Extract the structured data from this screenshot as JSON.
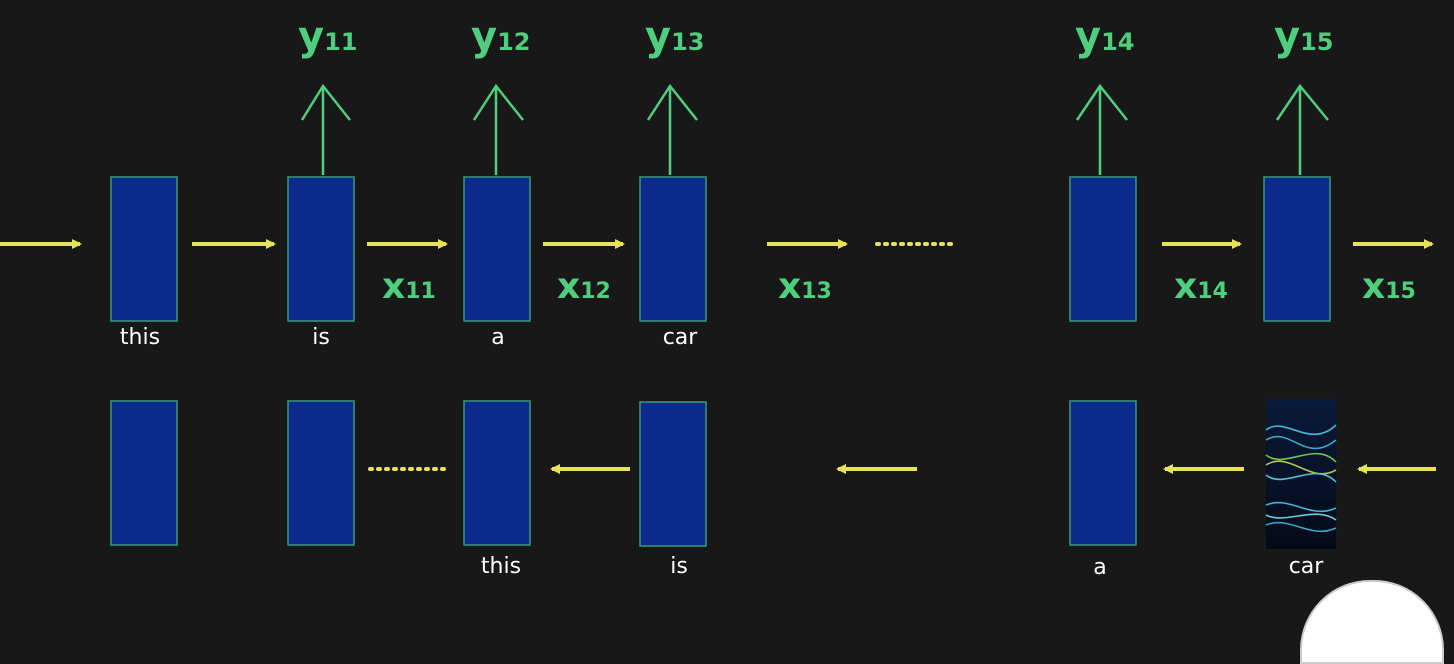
{
  "outputs": [
    {
      "main": "y",
      "sub": "11"
    },
    {
      "main": "y",
      "sub": "12"
    },
    {
      "main": "y",
      "sub": "13"
    },
    {
      "main": "y",
      "sub": "14"
    },
    {
      "main": "y",
      "sub": "15"
    }
  ],
  "hidden": [
    {
      "main": "x",
      "sub": "11"
    },
    {
      "main": "x",
      "sub": "12"
    },
    {
      "main": "x",
      "sub": "13"
    },
    {
      "main": "x",
      "sub": "14"
    },
    {
      "main": "x",
      "sub": "15"
    }
  ],
  "forward_words": [
    "this",
    "is",
    "a",
    "car"
  ],
  "backward_words": [
    "this",
    "is",
    "a",
    "car"
  ],
  "colors": {
    "background": "#181818",
    "cell": "#0b2a8e",
    "arrow_yellow": "#e6e35a",
    "label_green": "#4fcf7e"
  }
}
